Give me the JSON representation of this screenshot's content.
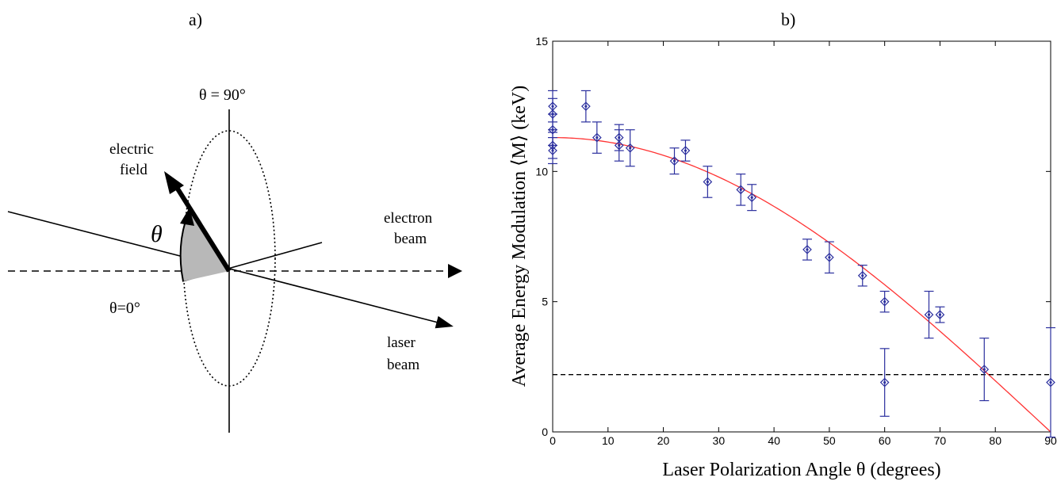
{
  "panels": {
    "a": {
      "label": "a)",
      "theta_90_label": "θ = 90°",
      "theta_0_label": "θ=0°",
      "theta_symbol": "θ",
      "electric_field_label": [
        "electric",
        "field"
      ],
      "electron_beam_label": [
        "electron",
        "beam"
      ],
      "laser_beam_label": [
        "laser",
        "beam"
      ]
    },
    "b": {
      "label": "b)"
    }
  },
  "chart_data": {
    "type": "scatter",
    "title": "",
    "xlabel": "Laser Polarization Angle θ (degrees)",
    "ylabel": "Average Energy Modulation ⟨M⟩ (keV)",
    "xlim": [
      0,
      90
    ],
    "ylim": [
      0,
      15
    ],
    "xticks": [
      0,
      10,
      20,
      30,
      40,
      50,
      60,
      70,
      80,
      90
    ],
    "yticks": [
      0,
      5,
      10,
      15
    ],
    "grid": false,
    "colors": {
      "points": "#2b2f9e",
      "fit": "#ff3333",
      "threshold": "#000000"
    },
    "series": [
      {
        "points": [
          {
            "x": 0,
            "y": 12.5,
            "err": 0.6
          },
          {
            "x": 0,
            "y": 12.2,
            "err": 0.6
          },
          {
            "x": 0,
            "y": 11.6,
            "err": 0.6
          },
          {
            "x": 0,
            "y": 11.0,
            "err": 0.5
          },
          {
            "x": 0,
            "y": 10.8,
            "err": 0.5
          },
          {
            "x": 6,
            "y": 12.5,
            "err": 0.6
          },
          {
            "x": 8,
            "y": 11.3,
            "err": 0.6
          },
          {
            "x": 12,
            "y": 11.3,
            "err": 0.5
          },
          {
            "x": 12,
            "y": 11.0,
            "err": 0.6
          },
          {
            "x": 14,
            "y": 10.9,
            "err": 0.7
          },
          {
            "x": 22,
            "y": 10.4,
            "err": 0.5
          },
          {
            "x": 24,
            "y": 10.8,
            "err": 0.4
          },
          {
            "x": 28,
            "y": 9.6,
            "err": 0.6
          },
          {
            "x": 34,
            "y": 9.3,
            "err": 0.6
          },
          {
            "x": 36,
            "y": 9.0,
            "err": 0.5
          },
          {
            "x": 46,
            "y": 7.0,
            "err": 0.4
          },
          {
            "x": 50,
            "y": 6.7,
            "err": 0.6
          },
          {
            "x": 56,
            "y": 6.0,
            "err": 0.4
          },
          {
            "x": 60,
            "y": 5.0,
            "err": 0.4
          },
          {
            "x": 60,
            "y": 1.9,
            "err": 1.3
          },
          {
            "x": 68,
            "y": 4.5,
            "err": 0.9
          },
          {
            "x": 70,
            "y": 4.5,
            "err": 0.3
          },
          {
            "x": 78,
            "y": 2.4,
            "err": 1.2
          },
          {
            "x": 90,
            "y": 1.9,
            "err": 2.1
          }
        ]
      },
      {
        "fit_curve": {
          "amplitude": 11.3,
          "function": "cos"
        }
      },
      {
        "threshold_line": {
          "y": 2.2
        }
      }
    ]
  }
}
